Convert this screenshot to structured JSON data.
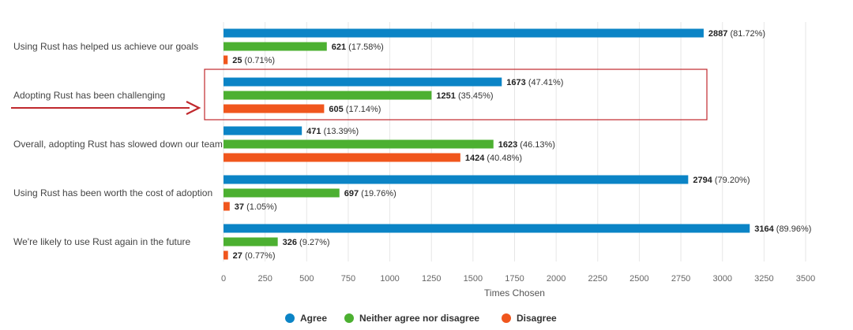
{
  "chart_data": {
    "type": "bar",
    "orientation": "horizontal",
    "title": "",
    "xlabel": "Times Chosen",
    "ylabel": "",
    "xlim": [
      0,
      3500
    ],
    "xticks": [
      0,
      250,
      500,
      750,
      1000,
      1250,
      1500,
      1750,
      2000,
      2250,
      2500,
      2750,
      3000,
      3250,
      3500
    ],
    "grid": true,
    "legend_position": "bottom",
    "categories": [
      "Using Rust has helped us achieve our goals",
      "Adopting Rust has been challenging",
      "Overall, adopting Rust has slowed down our team",
      "Using Rust has been worth the cost of adoption",
      "We're likely to use Rust again in the future"
    ],
    "series": [
      {
        "name": "Agree",
        "color": "#0b84c6",
        "values": [
          2887,
          1673,
          471,
          2794,
          3164
        ],
        "percent_labels": [
          "(81.72%)",
          "(47.41%)",
          "(13.39%)",
          "(79.20%)",
          "(89.96%)"
        ]
      },
      {
        "name": "Neither agree nor disagree",
        "color": "#4cb031",
        "values": [
          621,
          1251,
          1623,
          697,
          326
        ],
        "percent_labels": [
          "(17.58%)",
          "(35.45%)",
          "(46.13%)",
          "(19.76%)",
          "(9.27%)"
        ]
      },
      {
        "name": "Disagree",
        "color": "#f0561d",
        "values": [
          25,
          605,
          1424,
          37,
          27
        ],
        "percent_labels": [
          "(0.71%)",
          "(17.14%)",
          "(40.48%)",
          "(1.05%)",
          "(0.77%)"
        ]
      }
    ],
    "annotations": {
      "highlight_category": "Adopting Rust has been challenging",
      "highlight_color": "#c0282d",
      "arrow_color": "#c0282d"
    }
  }
}
